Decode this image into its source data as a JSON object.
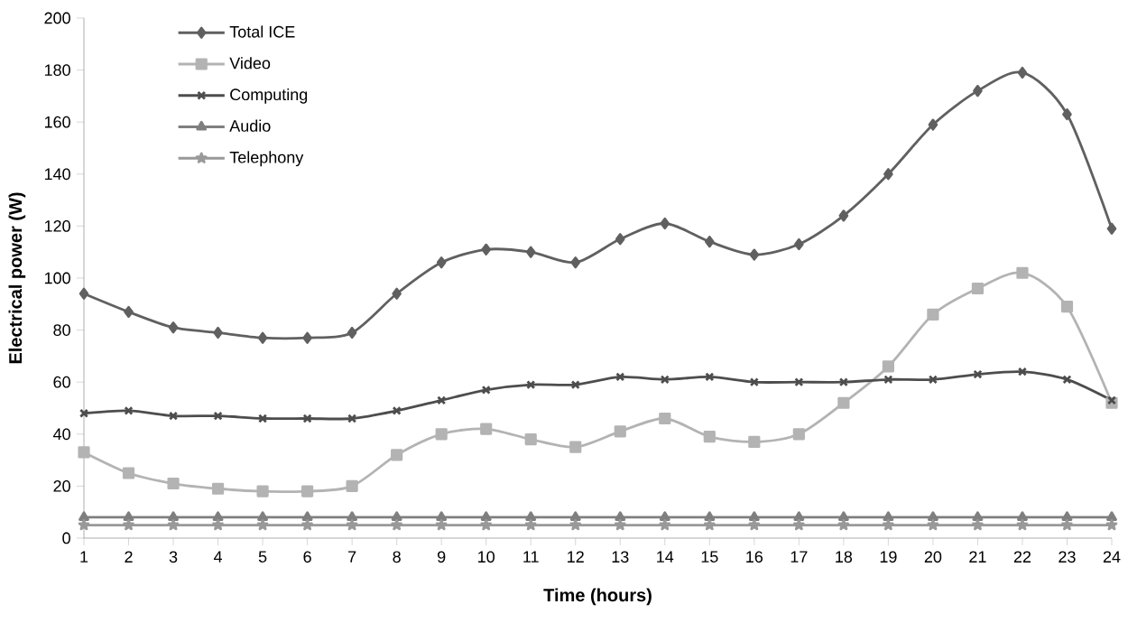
{
  "chart_data": {
    "type": "line",
    "xlabel": "Time (hours)",
    "ylabel": "Electrical power (W)",
    "categories": [
      "1",
      "2",
      "3",
      "4",
      "5",
      "6",
      "7",
      "8",
      "9",
      "10",
      "11",
      "12",
      "13",
      "14",
      "15",
      "16",
      "17",
      "18",
      "19",
      "20",
      "21",
      "22",
      "23",
      "24"
    ],
    "series": [
      {
        "name": "Total ICE",
        "color": "#606060",
        "marker": "diamond",
        "values": [
          94,
          87,
          81,
          79,
          77,
          77,
          79,
          94,
          106,
          111,
          110,
          106,
          115,
          121,
          114,
          109,
          113,
          124,
          140,
          159,
          172,
          179,
          163,
          119
        ]
      },
      {
        "name": "Video",
        "color": "#b3b3b3",
        "marker": "square",
        "values": [
          33,
          25,
          21,
          19,
          18,
          18,
          20,
          32,
          40,
          42,
          38,
          35,
          41,
          46,
          39,
          37,
          40,
          52,
          66,
          86,
          96,
          102,
          89,
          52
        ]
      },
      {
        "name": "Computing",
        "color": "#4d4d4d",
        "marker": "cross",
        "values": [
          48,
          49,
          47,
          47,
          46,
          46,
          46,
          49,
          53,
          57,
          59,
          59,
          62,
          61,
          62,
          60,
          60,
          60,
          61,
          61,
          63,
          64,
          61,
          53
        ]
      },
      {
        "name": "Audio",
        "color": "#7f7f7f",
        "marker": "triangle",
        "values": [
          8,
          8,
          8,
          8,
          8,
          8,
          8,
          8,
          8,
          8,
          8,
          8,
          8,
          8,
          8,
          8,
          8,
          8,
          8,
          8,
          8,
          8,
          8,
          8
        ]
      },
      {
        "name": "Telephony",
        "color": "#999999",
        "marker": "star",
        "values": [
          5,
          5,
          5,
          5,
          5,
          5,
          5,
          5,
          5,
          5,
          5,
          5,
          5,
          5,
          5,
          5,
          5,
          5,
          5,
          5,
          5,
          5,
          5,
          5
        ]
      }
    ],
    "ylim": [
      0,
      200
    ],
    "yticks": [
      0,
      20,
      40,
      60,
      80,
      100,
      120,
      140,
      160,
      180,
      200
    ],
    "grid": false,
    "legend": "top left",
    "line_style": "solid"
  }
}
